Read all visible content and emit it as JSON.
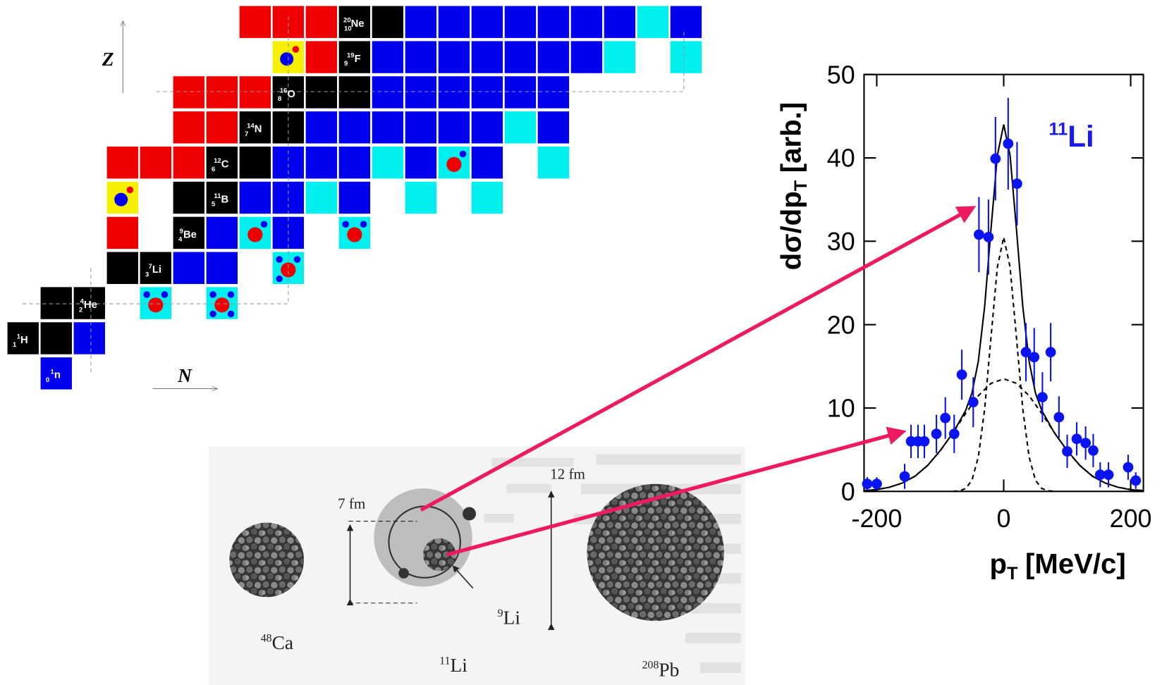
{
  "nuclide_chart": {
    "axis_labels": {
      "z": "Z",
      "n": "N"
    },
    "nuclides": [
      {
        "mass": 20,
        "z": 10,
        "symbol": "Ne"
      },
      {
        "mass": 19,
        "z": 9,
        "symbol": "F"
      },
      {
        "mass": 16,
        "z": 8,
        "symbol": "O"
      },
      {
        "mass": 14,
        "z": 7,
        "symbol": "N"
      },
      {
        "mass": 12,
        "z": 6,
        "symbol": "C"
      },
      {
        "mass": 11,
        "z": 5,
        "symbol": "B"
      },
      {
        "mass": 9,
        "z": 4,
        "symbol": "Be"
      },
      {
        "mass": 7,
        "z": 3,
        "symbol": "Li"
      },
      {
        "mass": 4,
        "z": 2,
        "symbol": "He"
      },
      {
        "mass": 1,
        "z": 1,
        "symbol": "H"
      },
      {
        "mass": 1,
        "z": 0,
        "symbol": "n"
      }
    ]
  },
  "size_diagram": {
    "radius_labels": [
      "7 fm",
      "12 fm"
    ],
    "nuclei": [
      {
        "mass": 48,
        "symbol": "Ca"
      },
      {
        "mass": 11,
        "symbol": "Li"
      },
      {
        "mass": 9,
        "symbol": "Li"
      },
      {
        "mass": 208,
        "symbol": "Pb"
      }
    ]
  },
  "chart_data": {
    "type": "scatter",
    "annotation": {
      "mass": 11,
      "symbol": "Li"
    },
    "ylabel": {
      "text": "dσ/dp",
      "subscript": "T",
      "unit": "[arb.]"
    },
    "xlabel": {
      "text": "p",
      "subscript": "T",
      "unit": "[MeV/c]"
    },
    "xlim": [
      -220,
      220
    ],
    "ylim": [
      0,
      50
    ],
    "xticks": [
      -200,
      0,
      200
    ],
    "yticks": [
      0,
      10,
      20,
      30,
      40,
      50
    ],
    "series": [
      {
        "color": "#0a14f0",
        "x": [
          -215,
          -200,
          -156,
          -146,
          -135,
          -125,
          -106,
          -92,
          -78,
          -66,
          -48,
          -39,
          -24,
          -13,
          7,
          21,
          35,
          48,
          61,
          74,
          87,
          100,
          115,
          129,
          141,
          152,
          165,
          196,
          208
        ],
        "values": [
          0.9,
          0.9,
          1.8,
          6,
          6,
          6,
          6.9,
          8.8,
          6.9,
          14,
          10.7,
          30.8,
          30.5,
          39.9,
          41.7,
          36.9,
          16.7,
          16.1,
          11.3,
          16.7,
          8.9,
          4.8,
          6.3,
          5.8,
          4.9,
          2,
          2,
          2.9,
          1.3
        ],
        "errors": [
          0.8,
          0.8,
          1.5,
          2,
          2,
          2,
          2.3,
          2.5,
          2.3,
          3,
          3,
          4.5,
          4.5,
          5,
          5.5,
          5,
          3.5,
          3.5,
          3,
          3.5,
          2.5,
          2,
          2,
          2,
          2,
          1.5,
          1.5,
          1.5,
          1
        ]
      }
    ],
    "curves": [
      {
        "color": "#000000",
        "style": "solid",
        "x": [
          -220,
          -200,
          -180,
          -160,
          -140,
          -120,
          -100,
          -80,
          -60,
          -50,
          -40,
          -30,
          -20,
          -10,
          0,
          10,
          20,
          30,
          40,
          50,
          60,
          80,
          100,
          120,
          140,
          160,
          180,
          200,
          220
        ],
        "values": [
          0.1,
          0.2,
          0.5,
          1.0,
          1.8,
          3.1,
          4.9,
          7.0,
          9.7,
          11.8,
          15.6,
          22.2,
          31.5,
          40.3,
          44.0,
          40.3,
          31.5,
          22.2,
          15.6,
          11.8,
          9.7,
          7.0,
          4.9,
          3.1,
          1.8,
          1.0,
          0.5,
          0.2,
          0.1
        ]
      },
      {
        "color": "#000000",
        "style": "dashed",
        "x": [
          -80,
          -70,
          -60,
          -50,
          -40,
          -30,
          -20,
          -10,
          0,
          10,
          20,
          30,
          40,
          50,
          60,
          70,
          80
        ],
        "values": [
          0.01,
          0.07,
          0.34,
          1.34,
          4.13,
          9.9,
          18.5,
          26.9,
          30.5,
          26.9,
          18.5,
          9.9,
          4.13,
          1.34,
          0.34,
          0.07,
          0.01
        ]
      },
      {
        "color": "#000000",
        "style": "dashed",
        "x": [
          -220,
          -200,
          -180,
          -160,
          -140,
          -120,
          -100,
          -80,
          -60,
          -40,
          -20,
          0,
          20,
          40,
          60,
          80,
          100,
          120,
          140,
          160,
          180,
          200,
          220
        ],
        "values": [
          0.1,
          0.23,
          0.5,
          0.99,
          1.83,
          3.11,
          4.86,
          7.03,
          9.35,
          11.47,
          12.96,
          13.5,
          12.96,
          11.47,
          9.35,
          7.03,
          4.86,
          3.11,
          1.83,
          0.99,
          0.5,
          0.23,
          0.1
        ]
      }
    ]
  }
}
